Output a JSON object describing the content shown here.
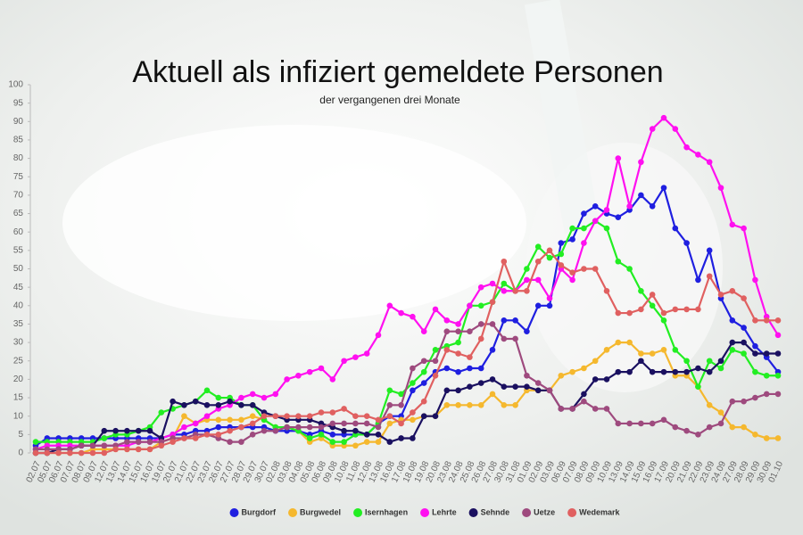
{
  "chart_data": {
    "type": "line",
    "title": "Aktuell als infiziert gemeldete Personen",
    "subtitle": "der vergangenen drei Monate",
    "categories": [
      "02.07",
      "05.07",
      "06.07",
      "07.07",
      "08.07",
      "09.07",
      "12.07",
      "13.07",
      "14.07",
      "15.07",
      "16.07",
      "19.07",
      "20.07",
      "21.07",
      "22.07",
      "23.07",
      "26.07",
      "27.07",
      "28.07",
      "29.07",
      "30.07",
      "02.08",
      "03.08",
      "04.08",
      "05.08",
      "06.08",
      "09.08",
      "10.08",
      "11.08",
      "12.08",
      "13.08",
      "16.08",
      "17.08",
      "18.08",
      "19.08",
      "20.08",
      "23.08",
      "24.08",
      "25.08",
      "26.08",
      "27.08",
      "30.08",
      "31.08",
      "01.09",
      "02.09",
      "03.09",
      "06.09",
      "07.09",
      "08.09",
      "09.09",
      "10.09",
      "13.09",
      "14.09",
      "15.09",
      "16.09",
      "17.09",
      "20.09",
      "21.09",
      "22.09",
      "23.09",
      "24.09",
      "27.09",
      "28.09",
      "29.09",
      "30.09",
      "01.10"
    ],
    "series": [
      {
        "name": "Burgdorf",
        "color": "#1f1fe0",
        "values": [
          2,
          4,
          4,
          4,
          4,
          4,
          4,
          4,
          4,
          4,
          4,
          4,
          5,
          5,
          6,
          6,
          7,
          7,
          7,
          7,
          7,
          6,
          6,
          6,
          5,
          6,
          5,
          5,
          5,
          5,
          8,
          10,
          10,
          17,
          19,
          22,
          23,
          22,
          23,
          23,
          28,
          36,
          36,
          33,
          40,
          40,
          57,
          58,
          65,
          67,
          65,
          64,
          66,
          70,
          67,
          72,
          61,
          57,
          47,
          55,
          42,
          36,
          34,
          29,
          26,
          22
        ]
      },
      {
        "name": "Burgwedel",
        "color": "#f5b82e",
        "values": [
          0,
          0,
          0,
          0,
          0,
          1,
          1,
          1,
          1,
          1,
          1,
          3,
          4,
          10,
          8,
          9,
          9,
          9,
          9,
          10,
          9,
          7,
          7,
          6,
          3,
          4,
          2,
          2,
          2,
          3,
          3,
          8,
          9,
          9,
          10,
          10,
          13,
          13,
          13,
          13,
          16,
          13,
          13,
          17,
          17,
          17,
          21,
          22,
          23,
          25,
          28,
          30,
          30,
          27,
          27,
          28,
          21,
          21,
          18,
          13,
          11,
          7,
          7,
          5,
          4,
          4
        ]
      },
      {
        "name": "Isernhagen",
        "color": "#22ee22",
        "values": [
          3,
          3,
          3,
          3,
          3,
          3,
          4,
          5,
          5,
          6,
          7,
          11,
          12,
          13,
          14,
          17,
          15,
          15,
          13,
          13,
          9,
          7,
          7,
          6,
          4,
          5,
          3,
          3,
          5,
          5,
          8,
          17,
          16,
          19,
          22,
          28,
          29,
          30,
          40,
          40,
          41,
          46,
          44,
          50,
          56,
          53,
          54,
          61,
          61,
          63,
          61,
          52,
          50,
          44,
          40,
          36,
          28,
          25,
          18,
          25,
          23,
          28,
          27,
          22,
          21,
          21
        ]
      },
      {
        "name": "Lehrte",
        "color": "#ff10f0",
        "values": [
          1,
          2,
          2,
          2,
          2,
          2,
          2,
          2,
          2,
          3,
          3,
          4,
          5,
          7,
          8,
          10,
          12,
          13,
          15,
          16,
          15,
          16,
          20,
          21,
          22,
          23,
          20,
          25,
          26,
          27,
          32,
          40,
          38,
          37,
          33,
          39,
          36,
          35,
          40,
          45,
          46,
          44,
          44,
          47,
          47,
          42,
          50,
          47,
          57,
          63,
          66,
          80,
          67,
          79,
          88,
          91,
          88,
          83,
          81,
          79,
          72,
          62,
          61,
          47,
          37,
          32
        ]
      },
      {
        "name": "Sehnde",
        "color": "#1a1060",
        "values": [
          0,
          0,
          1,
          1,
          2,
          2,
          6,
          6,
          6,
          6,
          6,
          4,
          14,
          13,
          14,
          13,
          13,
          14,
          13,
          13,
          11,
          10,
          9,
          9,
          9,
          8,
          7,
          6,
          6,
          5,
          5,
          3,
          4,
          4,
          10,
          10,
          17,
          17,
          18,
          19,
          20,
          18,
          18,
          18,
          17,
          17,
          12,
          12,
          16,
          20,
          20,
          22,
          22,
          25,
          22,
          22,
          22,
          22,
          23,
          22,
          25,
          30,
          30,
          27,
          27,
          27
        ]
      },
      {
        "name": "Uetze",
        "color": "#9e4a7e",
        "values": [
          1,
          1,
          1,
          1,
          2,
          2,
          2,
          2,
          3,
          3,
          3,
          3,
          4,
          4,
          5,
          5,
          4,
          3,
          3,
          5,
          6,
          6,
          7,
          7,
          7,
          7,
          8,
          8,
          8,
          8,
          7,
          13,
          13,
          23,
          25,
          25,
          33,
          33,
          33,
          35,
          35,
          31,
          31,
          21,
          19,
          17,
          12,
          12,
          14,
          12,
          12,
          8,
          8,
          8,
          8,
          9,
          7,
          6,
          5,
          7,
          8,
          14,
          14,
          15,
          16,
          16
        ]
      },
      {
        "name": "Wedemark",
        "color": "#e06060",
        "values": [
          0,
          0,
          0,
          0,
          0,
          0,
          0,
          1,
          1,
          1,
          1,
          2,
          3,
          4,
          4,
          5,
          5,
          6,
          7,
          8,
          10,
          10,
          10,
          10,
          10,
          11,
          11,
          12,
          10,
          10,
          9,
          10,
          8,
          11,
          14,
          21,
          28,
          27,
          26,
          31,
          41,
          52,
          44,
          44,
          52,
          55,
          51,
          49,
          50,
          50,
          44,
          38,
          38,
          39,
          43,
          38,
          39,
          39,
          39,
          48,
          43,
          44,
          42,
          36,
          36,
          36
        ]
      }
    ],
    "ylim": [
      0,
      100
    ],
    "yticks": [
      0,
      5,
      10,
      15,
      20,
      25,
      30,
      35,
      40,
      45,
      50,
      55,
      60,
      65,
      70,
      75,
      80,
      85,
      90,
      95,
      100
    ],
    "legend": "bottom"
  }
}
